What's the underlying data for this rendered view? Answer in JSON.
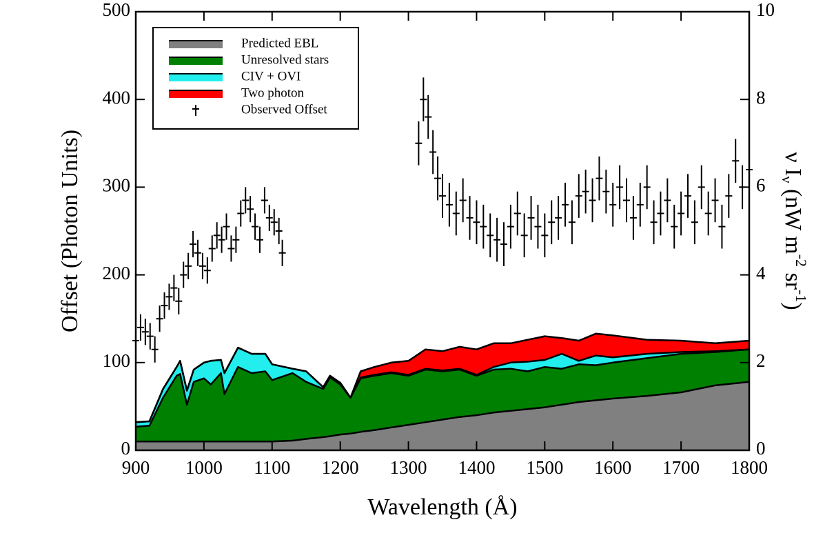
{
  "chart_data": {
    "type": "area",
    "stacked": true,
    "xlabel": "Wavelength (Å)",
    "ylabel": "Offset (Photon Units)",
    "y2label_parts": [
      "ν I",
      "ν",
      " (nW m",
      "-2",
      " sr",
      "-1",
      ")"
    ],
    "xlim": [
      900,
      1800
    ],
    "xticks": [
      900,
      1000,
      1100,
      1200,
      1300,
      1400,
      1500,
      1600,
      1700,
      1800
    ],
    "ylim": [
      0,
      500
    ],
    "yticks": [
      0,
      100,
      200,
      300,
      400,
      500
    ],
    "y2lim": [
      0,
      10
    ],
    "y2ticks": [
      0,
      2,
      4,
      6,
      8,
      10
    ],
    "legend": "upper left",
    "x": [
      900,
      920,
      940,
      960,
      965,
      975,
      985,
      1000,
      1010,
      1025,
      1030,
      1050,
      1070,
      1090,
      1100,
      1130,
      1150,
      1175,
      1185,
      1200,
      1215,
      1230,
      1250,
      1275,
      1300,
      1325,
      1350,
      1375,
      1400,
      1425,
      1450,
      1475,
      1500,
      1525,
      1550,
      1575,
      1600,
      1650,
      1700,
      1750,
      1800
    ],
    "series": [
      {
        "name": "Predicted EBL",
        "color": "#808080",
        "values": [
          10,
          10,
          10,
          10,
          10,
          10,
          10,
          10,
          10,
          10,
          10,
          10,
          10,
          10,
          10,
          11,
          13,
          15,
          16,
          18,
          19,
          21,
          23,
          26,
          29,
          32,
          35,
          38,
          40,
          43,
          45,
          47,
          49,
          52,
          55,
          57,
          59,
          62,
          66,
          74,
          78
        ]
      },
      {
        "name": "Unresolved stars",
        "color": "#008000",
        "values": [
          17,
          18,
          50,
          75,
          77,
          42,
          68,
          72,
          65,
          78,
          54,
          85,
          78,
          80,
          70,
          77,
          65,
          55,
          67,
          57,
          41,
          61,
          62,
          62,
          56,
          60,
          55,
          54,
          45,
          49,
          48,
          43,
          46,
          41,
          43,
          40,
          41,
          43,
          44,
          38,
          37
        ]
      },
      {
        "name": "CIV + OVI",
        "color": "#22eeee",
        "values": [
          5,
          5,
          10,
          10,
          15,
          16,
          14,
          18,
          27,
          15,
          24,
          22,
          22,
          20,
          18,
          5,
          12,
          2,
          2,
          2,
          0,
          1,
          1,
          1,
          1,
          1,
          1,
          1,
          1,
          3,
          7,
          11,
          8,
          17,
          4,
          11,
          6,
          5,
          2,
          1,
          0
        ]
      },
      {
        "name": "Two photon",
        "color": "#ff0000",
        "values": [
          0,
          0,
          0,
          0,
          0,
          0,
          0,
          0,
          0,
          0,
          0,
          0,
          0,
          0,
          0,
          0,
          0,
          0,
          0,
          0,
          0,
          7,
          9,
          11,
          16,
          22,
          22,
          25,
          29,
          27,
          22,
          25,
          27,
          18,
          23,
          25,
          25,
          16,
          13,
          9,
          10
        ]
      }
    ],
    "observed": {
      "type": "errorbar",
      "name": "Observed Offset",
      "color": "#000000",
      "x": [
        900,
        907,
        914,
        921,
        928,
        935,
        942,
        949,
        956,
        963,
        970,
        977,
        984,
        991,
        998,
        1005,
        1012,
        1019,
        1026,
        1033,
        1040,
        1047,
        1054,
        1061,
        1068,
        1075,
        1082,
        1089,
        1096,
        1103,
        1110,
        1115,
        1315,
        1322,
        1329,
        1336,
        1343,
        1350,
        1360,
        1370,
        1380,
        1390,
        1400,
        1410,
        1420,
        1430,
        1440,
        1450,
        1460,
        1470,
        1480,
        1490,
        1500,
        1510,
        1520,
        1530,
        1540,
        1550,
        1560,
        1570,
        1580,
        1590,
        1600,
        1610,
        1620,
        1630,
        1640,
        1650,
        1660,
        1670,
        1680,
        1690,
        1700,
        1710,
        1720,
        1730,
        1740,
        1750,
        1760,
        1770,
        1780,
        1790,
        1800
      ],
      "values": [
        125,
        140,
        135,
        130,
        115,
        150,
        165,
        175,
        185,
        170,
        200,
        210,
        235,
        225,
        210,
        205,
        230,
        245,
        240,
        255,
        230,
        240,
        270,
        285,
        275,
        255,
        240,
        285,
        265,
        260,
        250,
        225,
        350,
        400,
        380,
        340,
        310,
        290,
        280,
        270,
        285,
        265,
        260,
        255,
        245,
        240,
        235,
        255,
        270,
        245,
        265,
        255,
        245,
        260,
        265,
        280,
        260,
        290,
        295,
        285,
        310,
        295,
        280,
        300,
        285,
        265,
        280,
        300,
        260,
        270,
        285,
        255,
        270,
        290,
        260,
        300,
        270,
        285,
        255,
        290,
        330,
        300,
        320
      ],
      "errors": [
        15,
        15,
        15,
        15,
        15,
        15,
        15,
        15,
        15,
        15,
        15,
        15,
        15,
        15,
        15,
        15,
        15,
        15,
        15,
        15,
        15,
        15,
        15,
        15,
        15,
        15,
        15,
        15,
        15,
        15,
        15,
        15,
        25,
        25,
        25,
        25,
        25,
        25,
        25,
        25,
        25,
        25,
        25,
        25,
        25,
        25,
        25,
        25,
        25,
        25,
        25,
        25,
        25,
        25,
        25,
        25,
        25,
        25,
        25,
        25,
        25,
        25,
        25,
        25,
        25,
        25,
        25,
        25,
        25,
        25,
        25,
        25,
        25,
        25,
        25,
        25,
        25,
        25,
        25,
        25,
        25,
        25,
        25
      ]
    }
  }
}
